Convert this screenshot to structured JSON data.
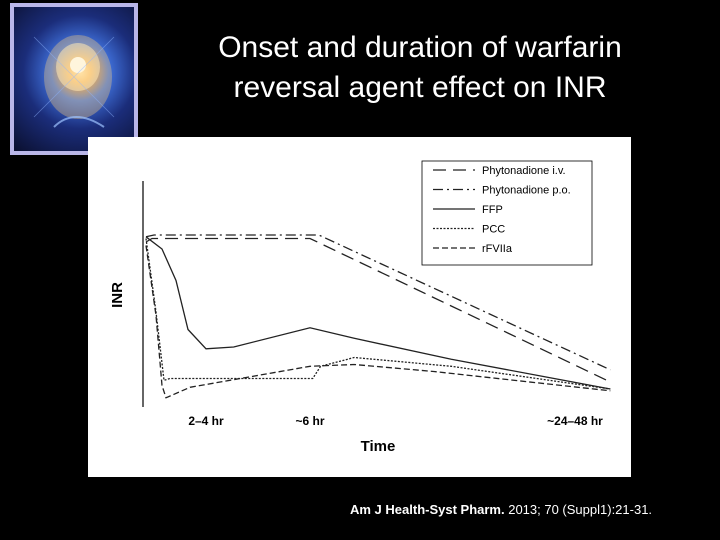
{
  "slide": {
    "title_line1": "Onset and duration of warfarin",
    "title_line2": "reversal agent effect on INR",
    "citation_journal": "Am J Health-Syst Pharm.",
    "citation_rest": " 2013; 70 (Suppl1):21-31."
  },
  "chart_data": {
    "type": "line",
    "title": "",
    "xlabel": "Time",
    "ylabel": "INR",
    "x_ticks": [
      {
        "label": "2–4 hr",
        "x": 3
      },
      {
        "label": "~6 hr",
        "x": 6
      },
      {
        "label": "~24–48 hr",
        "x": 36
      }
    ],
    "x_scale": "qualitative time (hours)",
    "legend_position": "top-right",
    "series": [
      {
        "name": "Phytonadione i.v.",
        "style": "long-dash",
        "points": [
          [
            0,
            9.2
          ],
          [
            0.3,
            9.4
          ],
          [
            6,
            9.4
          ],
          [
            40,
            1.2
          ]
        ]
      },
      {
        "name": "Phytonadione p.o.",
        "style": "dash-dot",
        "points": [
          [
            0,
            9.5
          ],
          [
            0.4,
            9.6
          ],
          [
            7,
            9.6
          ],
          [
            40,
            1.9
          ]
        ]
      },
      {
        "name": "FFP",
        "style": "solid",
        "points": [
          [
            0,
            9.5
          ],
          [
            0.8,
            8.8
          ],
          [
            1.5,
            7.0
          ],
          [
            2.1,
            4.2
          ],
          [
            3,
            3.1
          ],
          [
            3.8,
            3.2
          ],
          [
            6,
            4.3
          ],
          [
            11,
            3.7
          ],
          [
            22,
            2.5
          ],
          [
            40,
            0.8
          ]
        ]
      },
      {
        "name": "PCC",
        "style": "fine-dash",
        "points": [
          [
            0,
            9.4
          ],
          [
            0.5,
            5.2
          ],
          [
            0.9,
            1.3
          ],
          [
            1.2,
            1.4
          ],
          [
            6.3,
            1.4
          ],
          [
            7.2,
            2.1
          ],
          [
            11,
            2.6
          ],
          [
            22,
            2.1
          ],
          [
            40,
            0.8
          ]
        ]
      },
      {
        "name": "rFVIIa",
        "style": "medium-dash",
        "points": [
          [
            0,
            9.0
          ],
          [
            0.5,
            5.0
          ],
          [
            0.8,
            1.0
          ],
          [
            1.0,
            0.3
          ],
          [
            2.2,
            0.9
          ],
          [
            6,
            2.1
          ],
          [
            11,
            2.2
          ],
          [
            20,
            1.8
          ],
          [
            40,
            0.7
          ]
        ]
      }
    ]
  }
}
